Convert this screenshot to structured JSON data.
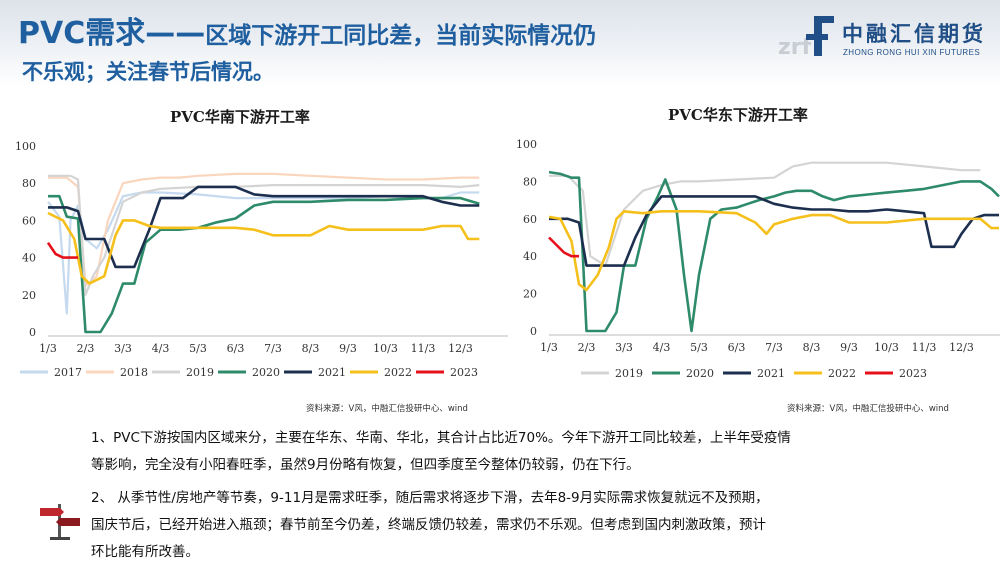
{
  "header": {
    "title_main": "PVC需求——",
    "title_rest": "区域下游开工同比差，当前实际情况仍",
    "title_line2": "不乐观；关注春节后情况。",
    "logo_cn": "中融汇信期货",
    "logo_en": "ZHONG RONG HUI XIN FUTURES",
    "logo_letters": "zrf"
  },
  "source_left": "资料来源：V风，中融汇信投研中心、wind",
  "source_right": "资料来源：V风，中融汇信投研中心、wind",
  "paragraphs": [
    "1、PVC下游按国内区域来分，主要在华东、华南、华北，其合计占比近70%。今年下游开工同比较差，上半年受疫情",
    "等影响，完全没有小阳春旺季，虽然9月份略有恢复，但四季度至今整体仍较弱，仍在下行。",
    "2、  从季节性/房地产等节奏，9-11月是需求旺季，随后需求将逐步下滑，去年8-9月实际需求恢复就远不及预期，",
    "国庆节后，已经开始进入瓶颈；春节前至今仍差，终端反馈仍较差，需求仍不乐观。但考虑到国内刺激政策，预计",
    "环比能有所改善。"
  ],
  "chart_data": [
    {
      "type": "line",
      "title": "PVC华南下游开工率",
      "categories": [
        "1/3",
        "2/3",
        "3/3",
        "4/3",
        "5/3",
        "6/3",
        "7/3",
        "8/3",
        "9/3",
        "10/3",
        "11/3",
        "12/3"
      ],
      "ylim": [
        0,
        100
      ],
      "yticks": [
        0,
        20,
        40,
        60,
        80,
        100
      ],
      "legend_position": "bottom",
      "grid": false,
      "series": [
        {
          "name": "2017",
          "color": "#c5d9ef",
          "x": [
            1,
            1.3,
            1.5,
            1.6,
            1.8,
            2.0,
            2.3,
            2.6,
            3.0,
            3.5,
            4.0,
            5,
            6,
            7,
            8,
            9,
            10,
            11,
            11.5,
            12,
            12.5
          ],
          "values": [
            70,
            62,
            10,
            60,
            68,
            50,
            45,
            55,
            73,
            75,
            75,
            74,
            72,
            72,
            72,
            72,
            73,
            72,
            72,
            75,
            75
          ]
        },
        {
          "name": "2018",
          "color": "#f9d6bd",
          "x": [
            1,
            1.5,
            1.8,
            2.0,
            2.3,
            2.6,
            3.0,
            3.5,
            4.0,
            4.5,
            5,
            6,
            7,
            8,
            9,
            10,
            11,
            12,
            12.5
          ],
          "values": [
            83,
            83,
            78,
            25,
            30,
            60,
            80,
            82,
            83,
            83,
            84,
            85,
            85,
            84,
            83,
            82,
            82,
            83,
            83
          ]
        },
        {
          "name": "2019",
          "color": "#d4d4d4",
          "x": [
            1,
            1.6,
            1.8,
            2.0,
            2.2,
            2.5,
            3.0,
            3.5,
            4.0,
            5,
            6,
            7,
            8,
            9,
            10,
            11,
            12,
            12.5
          ],
          "values": [
            84,
            84,
            82,
            20,
            30,
            40,
            70,
            75,
            77,
            78,
            78,
            79,
            79,
            79,
            79,
            79,
            78,
            79
          ]
        },
        {
          "name": "2020",
          "color": "#2e8b69",
          "x": [
            1,
            1.3,
            1.5,
            1.8,
            2.0,
            2.2,
            2.4,
            2.7,
            3.0,
            3.3,
            3.6,
            4.0,
            4.5,
            5.0,
            5.5,
            6.0,
            6.5,
            7,
            8,
            9,
            10,
            11,
            12,
            12.5
          ],
          "values": [
            73,
            73,
            62,
            61,
            0,
            0,
            0,
            10,
            26,
            26,
            48,
            55,
            55,
            56,
            59,
            61,
            68,
            70,
            70,
            71,
            71,
            72,
            72,
            69
          ]
        },
        {
          "name": "2021",
          "color": "#1c2f4f",
          "x": [
            1,
            1.5,
            1.8,
            2.0,
            2.3,
            2.5,
            2.8,
            3.0,
            3.3,
            3.5,
            3.7,
            4.0,
            4.3,
            4.6,
            5.0,
            5.5,
            6.0,
            6.5,
            7,
            8,
            9,
            10,
            11,
            11.5,
            12,
            12.5
          ],
          "values": [
            67,
            67,
            65,
            50,
            50,
            50,
            35,
            35,
            35,
            45,
            55,
            72,
            72,
            72,
            78,
            78,
            78,
            74,
            73,
            73,
            73,
            73,
            73,
            70,
            68,
            68
          ]
        },
        {
          "name": "2022",
          "color": "#f5c01c",
          "x": [
            1,
            1.4,
            1.7,
            1.9,
            2.1,
            2.5,
            2.8,
            3.0,
            3.3,
            3.7,
            4.0,
            4.5,
            5,
            5.5,
            6,
            6.5,
            7,
            7.5,
            8,
            8.5,
            9,
            10,
            11,
            11.5,
            12,
            12.2,
            12.5
          ],
          "values": [
            64,
            60,
            50,
            30,
            26,
            30,
            52,
            60,
            60,
            57,
            56,
            56,
            56,
            56,
            56,
            55,
            52,
            52,
            52,
            57,
            55,
            55,
            55,
            57,
            57,
            50,
            50
          ]
        },
        {
          "name": "2023",
          "color": "#e5101a",
          "x": [
            1,
            1.2,
            1.4,
            1.6,
            1.8
          ],
          "values": [
            48,
            42,
            40,
            40,
            40
          ]
        }
      ]
    },
    {
      "type": "line",
      "title": "PVC华东下游开工率",
      "categories": [
        "1/3",
        "2/3",
        "3/3",
        "4/3",
        "5/3",
        "6/3",
        "7/3",
        "8/3",
        "9/3",
        "10/3",
        "11/3",
        "12/3"
      ],
      "ylim": [
        0,
        100
      ],
      "yticks": [
        0,
        20,
        40,
        60,
        80,
        100
      ],
      "legend_position": "bottom",
      "grid": false,
      "series": [
        {
          "name": "2019",
          "color": "#d4d4d4",
          "x": [
            1,
            1.5,
            1.9,
            2.1,
            2.5,
            3.0,
            3.5,
            4.0,
            4.5,
            5,
            6,
            7,
            7.5,
            8,
            9,
            10,
            11,
            12,
            12.5
          ],
          "values": [
            83,
            83,
            75,
            40,
            35,
            65,
            75,
            78,
            80,
            80,
            81,
            82,
            88,
            90,
            90,
            90,
            88,
            86,
            86
          ]
        },
        {
          "name": "2020",
          "color": "#2e8b69",
          "x": [
            1,
            1.3,
            1.6,
            1.8,
            2.0,
            2.2,
            2.5,
            2.8,
            3.0,
            3.3,
            3.6,
            3.9,
            4.1,
            4.4,
            4.6,
            4.8,
            5.0,
            5.3,
            5.6,
            6.0,
            6.3,
            6.6,
            7.0,
            7.3,
            7.6,
            8.0,
            8.3,
            8.6,
            9.0,
            9.5,
            10,
            10.5,
            11,
            11.5,
            12,
            12.5,
            12.8,
            13.0
          ],
          "values": [
            85,
            84,
            82,
            82,
            0,
            0,
            0,
            10,
            35,
            35,
            60,
            72,
            81,
            65,
            30,
            0,
            30,
            60,
            65,
            66,
            68,
            70,
            72,
            74,
            75,
            75,
            72,
            70,
            72,
            73,
            74,
            75,
            76,
            78,
            80,
            80,
            76,
            72
          ]
        },
        {
          "name": "2021",
          "color": "#1c2f4f",
          "x": [
            1,
            1.5,
            1.8,
            2.0,
            2.3,
            2.6,
            3.0,
            3.3,
            3.6,
            4.0,
            4.5,
            5,
            5.5,
            6,
            6.5,
            7,
            7.5,
            8,
            8.5,
            9,
            9.5,
            10,
            10.5,
            11,
            11.2,
            11.5,
            11.8,
            12.0,
            12.3,
            12.6,
            13.0
          ],
          "values": [
            60,
            60,
            58,
            35,
            35,
            35,
            35,
            50,
            62,
            72,
            72,
            72,
            72,
            72,
            72,
            68,
            66,
            65,
            65,
            64,
            64,
            65,
            64,
            63,
            45,
            45,
            45,
            52,
            60,
            62,
            62
          ]
        },
        {
          "name": "2022",
          "color": "#f5c01c",
          "x": [
            1,
            1.3,
            1.6,
            1.8,
            2.0,
            2.3,
            2.6,
            2.8,
            3.0,
            3.5,
            4.0,
            4.5,
            5,
            6,
            6.5,
            6.8,
            7.0,
            7.5,
            8,
            8.5,
            9,
            10,
            11,
            12,
            12.5,
            12.8,
            13.0
          ],
          "values": [
            61,
            60,
            48,
            25,
            22,
            30,
            45,
            60,
            64,
            63,
            64,
            64,
            64,
            63,
            58,
            52,
            57,
            60,
            62,
            62,
            58,
            58,
            60,
            60,
            60,
            55,
            55
          ]
        },
        {
          "name": "2023",
          "color": "#e5101a",
          "x": [
            1,
            1.2,
            1.4,
            1.6,
            1.8
          ],
          "values": [
            50,
            46,
            42,
            40,
            40
          ]
        }
      ]
    }
  ]
}
